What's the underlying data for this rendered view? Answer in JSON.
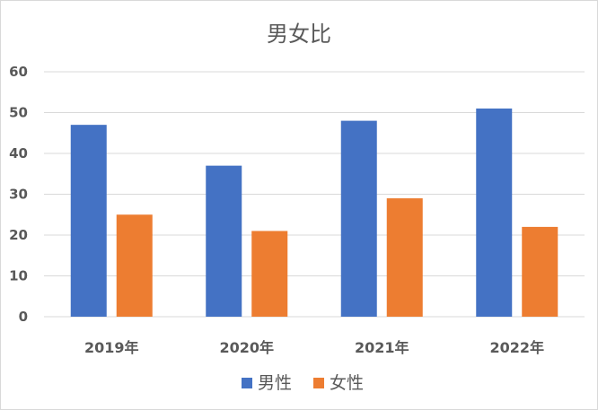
{
  "chart_data": {
    "type": "bar",
    "title": "男女比",
    "xlabel": "",
    "ylabel": "",
    "categories": [
      "2019年",
      "2020年",
      "2021年",
      "2022年"
    ],
    "series": [
      {
        "name": "男性",
        "values": [
          47,
          37,
          48,
          51
        ],
        "color": "#4472C4"
      },
      {
        "name": "女性",
        "values": [
          25,
          21,
          29,
          22
        ],
        "color": "#ED7D31"
      }
    ],
    "ylim": [
      0,
      60
    ],
    "yticks": [
      0,
      10,
      20,
      30,
      40,
      50,
      60
    ],
    "grid": true,
    "legend": "bottom",
    "colors": {
      "grid": "#d9d9d9",
      "axis_text": "#595959",
      "border": "#d9d9d9"
    }
  }
}
